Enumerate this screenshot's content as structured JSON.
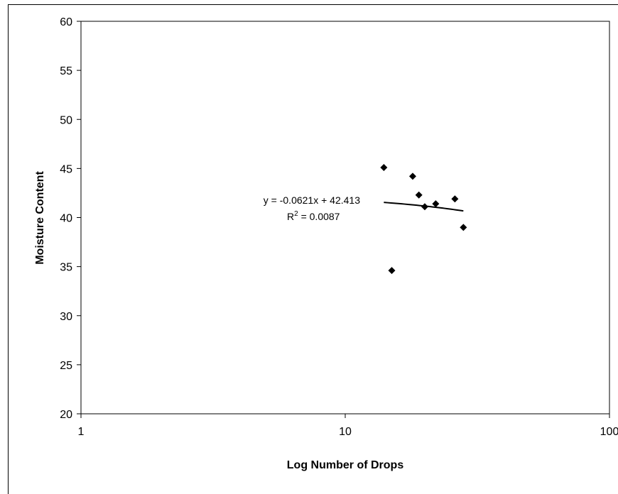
{
  "chart_data": {
    "type": "scatter",
    "title": "",
    "xlabel": "Log Number of Drops",
    "ylabel": "Moisture Content",
    "x_scale": "log",
    "xlim": [
      1,
      100
    ],
    "ylim": [
      20,
      60
    ],
    "x_ticks": [
      1,
      10,
      100
    ],
    "x_tick_labels": [
      "1",
      "10",
      "100"
    ],
    "y_ticks": [
      20,
      25,
      30,
      35,
      40,
      45,
      50,
      55,
      60
    ],
    "grid": false,
    "legend": "none",
    "marker": "diamond",
    "marker_color": "#000000",
    "points": [
      {
        "x": 14,
        "y": 45.1
      },
      {
        "x": 15,
        "y": 34.6
      },
      {
        "x": 18,
        "y": 44.2
      },
      {
        "x": 19,
        "y": 42.3
      },
      {
        "x": 20,
        "y": 41.1
      },
      {
        "x": 22,
        "y": 41.4
      },
      {
        "x": 26,
        "y": 41.9
      },
      {
        "x": 28,
        "y": 39.0
      }
    ],
    "trendline": {
      "type": "linear",
      "slope": -0.0621,
      "intercept": 42.413,
      "x_range": [
        14,
        28
      ],
      "equation_label": "y = -0.0621x + 42.413",
      "r2_label_prefix": "R",
      "r2_label_sup": "2",
      "r2_label_value": " = 0.0087"
    }
  }
}
